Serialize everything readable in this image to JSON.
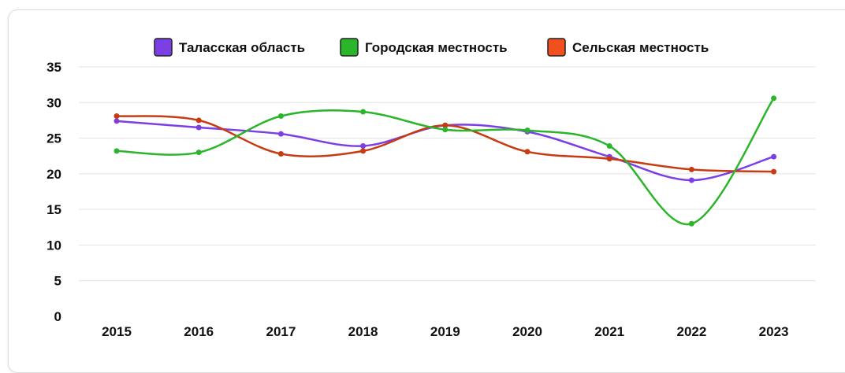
{
  "chart_data": {
    "type": "line",
    "categories": [
      "2015",
      "2016",
      "2017",
      "2018",
      "2019",
      "2020",
      "2021",
      "2022",
      "2023"
    ],
    "series": [
      {
        "name": "Таласская область",
        "color": "#7b3fe4",
        "values": [
          27.4,
          26.5,
          25.6,
          23.9,
          26.8,
          25.9,
          22.4,
          19.1,
          22.4
        ]
      },
      {
        "name": "Городская местность",
        "color": "#2bb52b",
        "values": [
          23.2,
          23.0,
          28.1,
          28.7,
          26.2,
          26.1,
          23.9,
          13.0,
          30.6
        ]
      },
      {
        "name": "Сельская местность",
        "color": "#c83a12",
        "values": [
          28.1,
          27.5,
          22.8,
          23.2,
          26.8,
          23.1,
          22.1,
          20.6,
          20.3
        ]
      }
    ],
    "y_ticks": [
      "0",
      "5",
      "10",
      "15",
      "20",
      "25",
      "30",
      "35"
    ],
    "ylim": [
      0,
      35
    ],
    "grid": "horizontal",
    "legend_position": "top-center",
    "legend_swatch_colors": [
      "#7b3fe4",
      "#2bb52b",
      "#f0501e"
    ]
  }
}
